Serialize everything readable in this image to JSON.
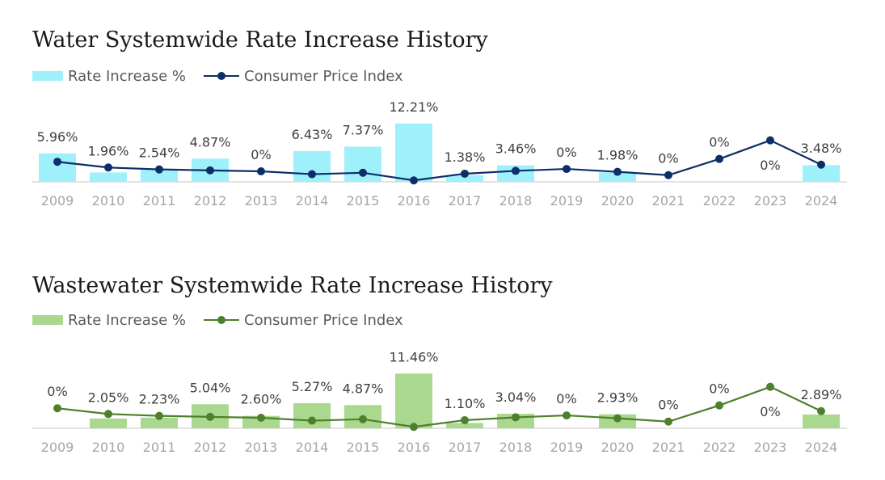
{
  "chart_data": [
    {
      "type": "bar",
      "title": "Water Systemwide Rate Increase History",
      "categories": [
        "2009",
        "2010",
        "2011",
        "2012",
        "2013",
        "2014",
        "2015",
        "2016",
        "2017",
        "2018",
        "2019",
        "2020",
        "2021",
        "2022",
        "2023",
        "2024"
      ],
      "series": [
        {
          "name": "Rate Increase %",
          "type": "bar",
          "values": [
            5.96,
            1.96,
            2.54,
            4.87,
            0,
            6.43,
            7.37,
            12.21,
            1.38,
            3.46,
            0,
            1.98,
            0,
            0,
            0,
            3.48
          ],
          "labels": [
            "5.96%",
            "1.96%",
            "2.54%",
            "4.87%",
            "0%",
            "6.43%",
            "7.37%",
            "12.21%",
            "1.38%",
            "3.46%",
            "0%",
            "1.98%",
            "0%",
            "0%",
            "0%",
            "3.48%"
          ]
        },
        {
          "name": "Consumer Price Index",
          "type": "line",
          "values": [
            4.2,
            3.0,
            2.6,
            2.4,
            2.2,
            1.6,
            1.9,
            0.3,
            1.7,
            2.3,
            2.7,
            2.1,
            1.4,
            4.8,
            8.7,
            3.6
          ]
        }
      ],
      "bar_color": "#9ef0fb",
      "line_color": "#0d2e66",
      "ylim": [
        0,
        13
      ]
    },
    {
      "type": "bar",
      "title": "Wastewater Systemwide Rate Increase History",
      "categories": [
        "2009",
        "2010",
        "2011",
        "2012",
        "2013",
        "2014",
        "2015",
        "2016",
        "2017",
        "2018",
        "2019",
        "2020",
        "2021",
        "2022",
        "2023",
        "2024"
      ],
      "series": [
        {
          "name": "Rate Increase %",
          "type": "bar",
          "values": [
            0,
            2.05,
            2.23,
            5.04,
            2.6,
            5.27,
            4.87,
            11.46,
            1.1,
            3.04,
            0,
            2.93,
            0,
            0,
            0,
            2.89
          ],
          "labels": [
            "0%",
            "2.05%",
            "2.23%",
            "5.04%",
            "2.60%",
            "5.27%",
            "4.87%",
            "11.46%",
            "1.10%",
            "3.04%",
            "0%",
            "2.93%",
            "0%",
            "0%",
            "0%",
            "2.89%"
          ]
        },
        {
          "name": "Consumer Price Index",
          "type": "line",
          "values": [
            4.2,
            3.0,
            2.6,
            2.4,
            2.2,
            1.6,
            1.9,
            0.3,
            1.7,
            2.3,
            2.7,
            2.1,
            1.4,
            4.8,
            8.7,
            3.6
          ]
        }
      ],
      "bar_color": "#a9d88e",
      "line_color": "#4e7f2c",
      "ylim": [
        0,
        13
      ]
    }
  ]
}
